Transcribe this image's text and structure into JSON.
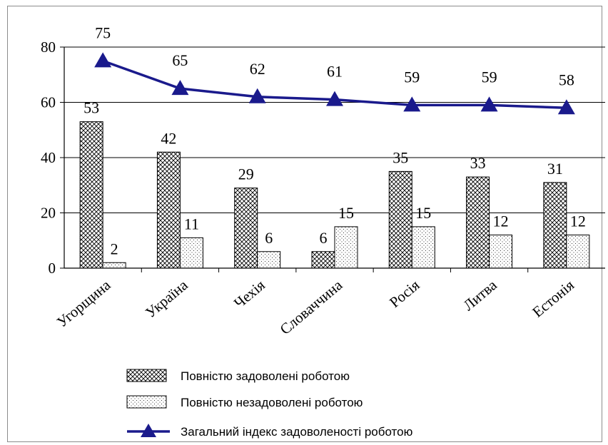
{
  "chart_data": {
    "type": "bar",
    "categories": [
      "Угорщина",
      "Україна",
      "Чехія",
      "Словаччина",
      "Росія",
      "Литва",
      "Естонія"
    ],
    "ylim": [
      0,
      80
    ],
    "yticks": [
      0,
      20,
      40,
      60,
      80
    ],
    "grid": true,
    "series": [
      {
        "name": "Повністю задоволені роботою",
        "kind": "bar",
        "pattern": "crosshatch",
        "values": [
          53,
          42,
          29,
          6,
          35,
          33,
          31
        ]
      },
      {
        "name": "Повністю незадоволені роботою",
        "kind": "bar",
        "pattern": "dots",
        "values": [
          2,
          11,
          6,
          15,
          15,
          12,
          12
        ]
      },
      {
        "name": "Загальний індекс задоволеності роботою",
        "kind": "line",
        "marker": "triangle",
        "color": "#1a1a8c",
        "values": [
          75,
          65,
          62,
          61,
          59,
          59,
          58
        ]
      }
    ]
  }
}
